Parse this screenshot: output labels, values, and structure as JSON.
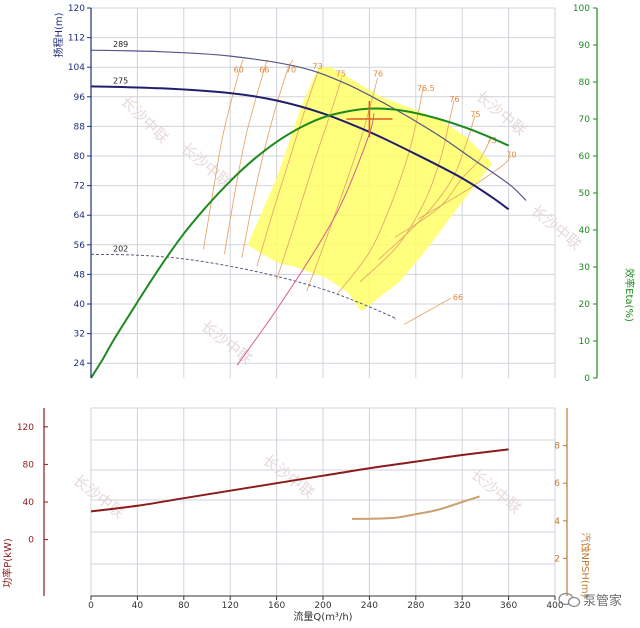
{
  "chart_data": {
    "type": "line",
    "x_axis": {
      "title": "流量Q(m³/h)",
      "ticks": [
        0,
        40,
        80,
        120,
        160,
        200,
        240,
        280,
        320,
        360,
        400
      ],
      "range": [
        0,
        400
      ]
    },
    "head_axis": {
      "title": "扬程H(m)",
      "ticks": [
        24,
        32,
        40,
        48,
        56,
        64,
        72,
        80,
        88,
        96,
        104,
        112,
        120
      ],
      "range": [
        20,
        120
      ],
      "color": "#1f2f7a"
    },
    "efficiency_axis": {
      "title": "效率Eta(%)",
      "ticks": [
        0,
        10,
        20,
        30,
        40,
        50,
        60,
        70,
        80,
        90,
        100
      ],
      "range": [
        0,
        100
      ],
      "color": "#1e8a1e"
    },
    "power_axis": {
      "title": "功率P(kW)",
      "ticks": [
        0,
        40,
        80,
        120
      ],
      "range": [
        -60,
        140
      ],
      "color": "#8b1a1a"
    },
    "npsh_axis": {
      "title": "汽蚀NPSH(m)",
      "ticks": [
        2,
        4,
        6,
        8
      ],
      "range": [
        0,
        10
      ],
      "color": "#c07a33"
    },
    "head_curves": [
      {
        "name": "289",
        "color": "#55558a",
        "width": 1.2,
        "points": [
          [
            0,
            108.6
          ],
          [
            60,
            108.2
          ],
          [
            120,
            107
          ],
          [
            180,
            104
          ],
          [
            220,
            99.5
          ],
          [
            260,
            93
          ],
          [
            300,
            85.5
          ],
          [
            330,
            79
          ],
          [
            360,
            72.5
          ],
          [
            375,
            68
          ]
        ]
      },
      {
        "name": "275",
        "color": "#1f1f6e",
        "width": 2,
        "points": [
          [
            0,
            98.8
          ],
          [
            60,
            98.3
          ],
          [
            120,
            97
          ],
          [
            160,
            95
          ],
          [
            200,
            91.5
          ],
          [
            240,
            86.5
          ],
          [
            280,
            80.5
          ],
          [
            320,
            74
          ],
          [
            345,
            69
          ],
          [
            360,
            65.6
          ]
        ]
      },
      {
        "name": "202",
        "color": "#5a5a7a",
        "width": 1,
        "dash": "3,2",
        "points": [
          [
            0,
            53.4
          ],
          [
            40,
            53.2
          ],
          [
            80,
            52.2
          ],
          [
            120,
            50.2
          ],
          [
            160,
            47.5
          ],
          [
            200,
            44
          ],
          [
            230,
            40.5
          ],
          [
            260,
            36.5
          ],
          [
            262,
            35.9
          ]
        ]
      }
    ],
    "efficiency_curve": {
      "color": "#1e8a1e",
      "points": [
        [
          0,
          0
        ],
        [
          10,
          5
        ],
        [
          20,
          10.5
        ],
        [
          40,
          20.5
        ],
        [
          60,
          30.2
        ],
        [
          80,
          39
        ],
        [
          100,
          46.5
        ],
        [
          120,
          53.2
        ],
        [
          140,
          59
        ],
        [
          160,
          63.8
        ],
        [
          180,
          67.6
        ],
        [
          200,
          70.4
        ],
        [
          220,
          72
        ],
        [
          240,
          72.8
        ],
        [
          260,
          72.6
        ],
        [
          280,
          71.6
        ],
        [
          300,
          70
        ],
        [
          320,
          68
        ],
        [
          340,
          65.6
        ],
        [
          360,
          62.8
        ]
      ]
    },
    "system_curve": {
      "color": "#d85c8a",
      "points": [
        [
          126,
          23.5
        ],
        [
          160,
          38.5
        ],
        [
          200,
          58
        ],
        [
          220,
          70
        ],
        [
          240,
          86
        ],
        [
          244,
          91.5
        ]
      ]
    },
    "operating_point": {
      "x": 240,
      "y": 90,
      "color": "#e05a2a"
    },
    "power_curve": {
      "color": "#8b1a1a",
      "points": [
        [
          0,
          30
        ],
        [
          40,
          36
        ],
        [
          80,
          44
        ],
        [
          120,
          52
        ],
        [
          160,
          60
        ],
        [
          200,
          68
        ],
        [
          240,
          76
        ],
        [
          280,
          83
        ],
        [
          320,
          90
        ],
        [
          360,
          96
        ]
      ]
    },
    "npsh_curve": {
      "color": "#c9a070",
      "points": [
        [
          225,
          4.1
        ],
        [
          260,
          4.15
        ],
        [
          280,
          4.35
        ],
        [
          300,
          4.6
        ],
        [
          320,
          5.0
        ],
        [
          335,
          5.3
        ]
      ]
    },
    "efficiency_isolines": [
      {
        "label": "60",
        "points": [
          [
            97,
            54.8
          ],
          [
            105,
            70
          ],
          [
            114,
            86
          ],
          [
            127,
            102
          ],
          [
            131,
            106
          ]
        ]
      },
      {
        "label": "66",
        "points": [
          [
            115,
            53.5
          ],
          [
            124,
            70
          ],
          [
            134,
            86
          ],
          [
            148,
            102
          ],
          [
            152,
            106
          ]
        ]
      },
      {
        "label": "70",
        "points": [
          [
            130,
            52.5
          ],
          [
            141,
            70
          ],
          [
            153,
            86
          ],
          [
            168,
            102
          ],
          [
            174,
            106
          ]
        ]
      },
      {
        "label": "73",
        "points": [
          [
            143,
            50.2
          ],
          [
            157,
            65
          ],
          [
            172,
            80
          ],
          [
            186,
            94
          ],
          [
            196,
            103
          ]
        ]
      },
      {
        "label": "75",
        "points": [
          [
            160,
            46.5
          ],
          [
            176,
            62
          ],
          [
            192,
            78
          ],
          [
            207,
            92
          ],
          [
            216,
            101
          ]
        ]
      },
      {
        "label": "76",
        "points": [
          [
            186,
            43.5
          ],
          [
            202,
            57
          ],
          [
            218,
            71
          ],
          [
            232,
            84
          ],
          [
            241,
            94
          ],
          [
            247,
            101
          ]
        ]
      },
      {
        "label": "76.5",
        "points": [
          [
            212,
            42.6
          ],
          [
            240,
            54
          ],
          [
            260,
            68
          ],
          [
            275,
            82
          ],
          [
            283,
            93
          ],
          [
            286,
            98
          ]
        ]
      },
      {
        "label": "76",
        "points": [
          [
            232,
            46
          ],
          [
            265,
            56
          ],
          [
            288,
            68
          ],
          [
            302,
            80
          ],
          [
            310,
            91
          ],
          [
            313,
            95
          ]
        ]
      },
      {
        "label": "75",
        "points": [
          [
            248,
            52
          ],
          [
            285,
            63
          ],
          [
            310,
            73
          ],
          [
            322,
            82
          ],
          [
            331,
            91
          ]
        ]
      },
      {
        "label": "73",
        "points": [
          [
            262,
            58
          ],
          [
            300,
            66
          ],
          [
            320,
            74
          ],
          [
            335,
            79
          ],
          [
            345,
            85
          ]
        ]
      },
      {
        "label": "70",
        "points": [
          [
            282,
            63
          ],
          [
            320,
            70
          ],
          [
            344,
            75
          ],
          [
            357,
            78
          ],
          [
            362,
            80
          ]
        ]
      },
      {
        "label": "66",
        "points": [
          [
            270,
            34.5
          ],
          [
            310,
            41.5
          ]
        ]
      }
    ],
    "preferred_zone": {
      "color": "#ffff66",
      "polygon": [
        [
          196,
          104
        ],
        [
          207,
          104
        ],
        [
          250,
          96
        ],
        [
          300,
          90
        ],
        [
          324,
          85
        ],
        [
          346,
          78
        ],
        [
          316,
          66
        ],
        [
          290,
          55
        ],
        [
          266,
          46
        ],
        [
          233,
          38
        ],
        [
          222,
          43
        ],
        [
          203,
          47
        ],
        [
          176,
          50
        ],
        [
          162,
          51
        ],
        [
          145,
          54
        ],
        [
          135,
          56
        ],
        [
          160,
          74
        ],
        [
          182,
          94
        ]
      ]
    }
  },
  "watermarks": [
    "长沙中联",
    "长沙中联",
    "长沙中联",
    "长沙中联",
    "长沙中联",
    "长沙中联",
    "长沙中联",
    "长沙中联"
  ],
  "brand": {
    "text": "泵管家",
    "icon": "wechat-logo-icon"
  }
}
